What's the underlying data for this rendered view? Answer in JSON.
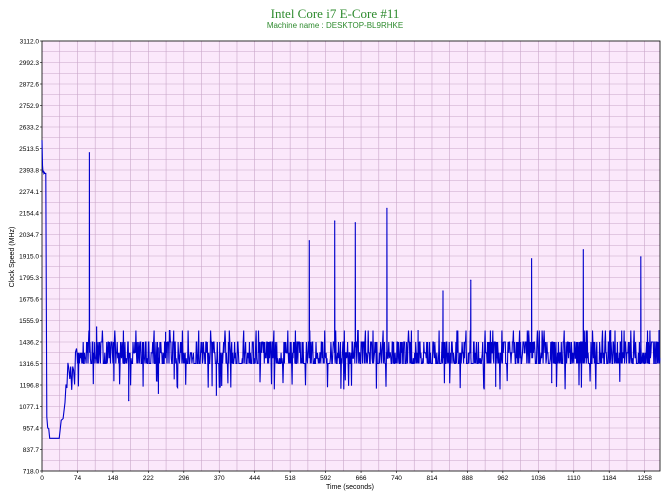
{
  "chart_data": {
    "type": "line",
    "title": "Intel Core i7 E-Core #11",
    "subtitle": "Machine name : DESKTOP-BL9RHKE",
    "xlabel": "Time (seconds)",
    "ylabel": "Clock Speed (MHz)",
    "xlim": [
      0,
      1290
    ],
    "ylim": [
      718.0,
      3112.0
    ],
    "xticks": [
      "0",
      "74",
      "148",
      "222",
      "296",
      "370",
      "444",
      "518",
      "592",
      "666",
      "740",
      "814",
      "888",
      "962",
      "1036",
      "1110",
      "1184",
      "1258"
    ],
    "yticks": [
      "718.0",
      "837.7",
      "957.4",
      "1077.1",
      "1196.8",
      "1316.5",
      "1436.2",
      "1555.9",
      "1675.6",
      "1795.3",
      "1915.0",
      "2034.7",
      "2154.4",
      "2274.1",
      "2393.8",
      "2513.5",
      "2633.2",
      "2752.9",
      "2872.6",
      "2992.3",
      "3112.0"
    ],
    "grid": true,
    "colors": {
      "plot_background": "#fbe8fb",
      "grid": "#c9a6c9",
      "line": "#0000cc",
      "title": "#2e8b2e"
    },
    "series": [
      {
        "name": "",
        "baseline_values": [
          1316.5,
          1346,
          1376,
          1406,
          1436.2
        ],
        "segments": [
          {
            "x": [
              0,
              1,
              2,
              3,
              4,
              5,
              6,
              8,
              10,
              12,
              14,
              16,
              18,
              20,
              24,
              28,
              32,
              36,
              40,
              44,
              48,
              50,
              52,
              54,
              56,
              58,
              60,
              62,
              64,
              66,
              68,
              70,
              72
            ],
            "y": [
              2560,
              2420,
              2380,
              2390,
              2375,
              2380,
              2375,
              2375,
              1020,
              957,
              955,
              900,
              900,
              900,
              900,
              900,
              900,
              900,
              1000,
              1010,
              1100,
              1200,
              1180,
              1320,
              1290,
              1230,
              1300,
              1170,
              1300,
              1280,
              1200,
              1380,
              1400
            ]
          }
        ],
        "spikes": [
          {
            "x": 99,
            "y": 2490
          },
          {
            "x": 114,
            "y": 1520
          },
          {
            "x": 181,
            "y": 1110
          },
          {
            "x": 243,
            "y": 1150
          },
          {
            "x": 258,
            "y": 1490
          },
          {
            "x": 364,
            "y": 1140
          },
          {
            "x": 558,
            "y": 2000
          },
          {
            "x": 611,
            "y": 2110
          },
          {
            "x": 654,
            "y": 2100
          },
          {
            "x": 720,
            "y": 2180
          },
          {
            "x": 785,
            "y": 1500
          },
          {
            "x": 837,
            "y": 1720
          },
          {
            "x": 895,
            "y": 1780
          },
          {
            "x": 947,
            "y": 1190
          },
          {
            "x": 1022,
            "y": 1900
          },
          {
            "x": 1064,
            "y": 1210
          },
          {
            "x": 1130,
            "y": 1950
          },
          {
            "x": 1187,
            "y": 1500
          },
          {
            "x": 1250,
            "y": 1910
          },
          {
            "x": 1288,
            "y": 1500
          }
        ]
      }
    ]
  }
}
